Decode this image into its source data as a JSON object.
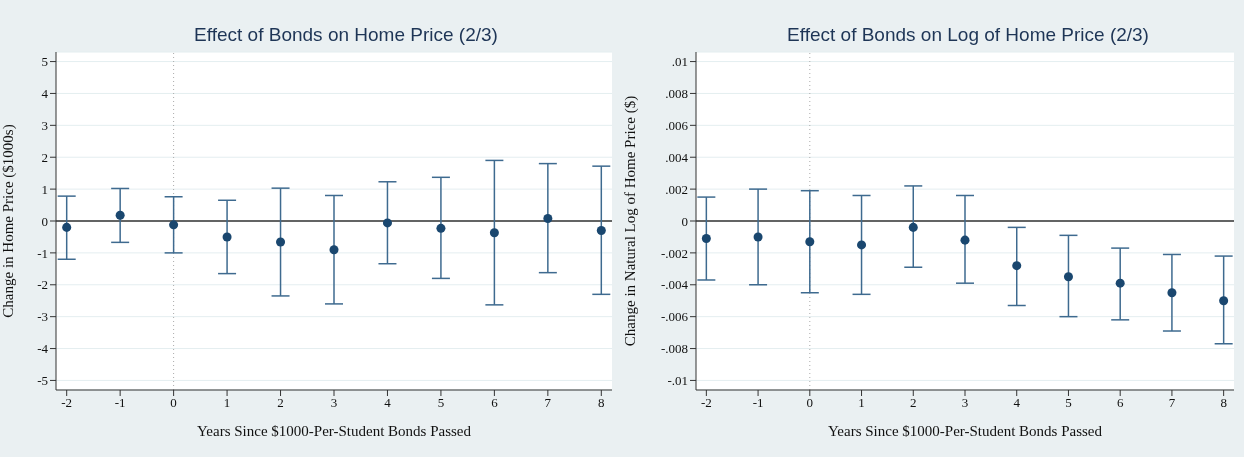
{
  "chart_data": [
    {
      "type": "scatter",
      "title": "Effect of Bonds on Home Price (2/3)",
      "xlabel": "Years Since $1000-Per-Student Bonds Passed",
      "ylabel": "Change in Home Price ($1000s)",
      "marker": "circle",
      "grid": "y",
      "xlim": [
        -2.2,
        8.2
      ],
      "xticks": [
        -2,
        -1,
        0,
        1,
        2,
        3,
        4,
        5,
        6,
        7,
        8
      ],
      "ylim": [
        -5.3,
        5.3
      ],
      "yticks": [
        -5,
        -4,
        -3,
        -2,
        -1,
        0,
        1,
        2,
        3,
        4,
        5
      ],
      "ref_lines": [
        {
          "axis": "y",
          "value": 0,
          "color": "#333333",
          "line_style": "solid"
        },
        {
          "axis": "x",
          "value": 0,
          "color": "#aaaaaa",
          "line_style": "dotted"
        }
      ],
      "series": [
        {
          "color": "#1a476f",
          "x": [
            -2,
            -1,
            0,
            1,
            2,
            3,
            4,
            5,
            6,
            7,
            8
          ],
          "values": [
            -0.2,
            0.18,
            -0.12,
            -0.5,
            -0.66,
            -0.9,
            -0.06,
            -0.23,
            -0.37,
            0.08,
            -0.3
          ],
          "errors": [
            [
              -1.2,
              0.78
            ],
            [
              -0.67,
              1.02
            ],
            [
              -1.0,
              0.76
            ],
            [
              -1.65,
              0.65
            ],
            [
              -2.35,
              1.03
            ],
            [
              -2.6,
              0.8
            ],
            [
              -1.34,
              1.23
            ],
            [
              -1.8,
              1.37
            ],
            [
              -2.63,
              1.9
            ],
            [
              -1.62,
              1.8
            ],
            [
              -2.3,
              1.72
            ]
          ]
        }
      ]
    },
    {
      "type": "scatter",
      "title": "Effect of Bonds on Log of Home Price (2/3)",
      "xlabel": "Years Since $1000-Per-Student Bonds Passed",
      "ylabel": "Change in Natural Log of Home Price ($)",
      "marker": "circle",
      "grid": "y",
      "xlim": [
        -2.2,
        8.2
      ],
      "xticks": [
        -2,
        -1,
        0,
        1,
        2,
        3,
        4,
        5,
        6,
        7,
        8
      ],
      "ylim": [
        -0.0106,
        0.0106
      ],
      "yticks": [
        {
          "value": -0.01,
          "label": "-.01"
        },
        {
          "value": -0.008,
          "label": "-.008"
        },
        {
          "value": -0.006,
          "label": "-.006"
        },
        {
          "value": -0.004,
          "label": "-.004"
        },
        {
          "value": -0.002,
          "label": "-.002"
        },
        0,
        {
          "value": 0.002,
          "label": ".002"
        },
        {
          "value": 0.004,
          "label": ".004"
        },
        {
          "value": 0.006,
          "label": ".006"
        },
        {
          "value": 0.008,
          "label": ".008"
        },
        {
          "value": 0.01,
          "label": ".01"
        }
      ],
      "ref_lines": [
        {
          "axis": "y",
          "value": 0,
          "color": "#333333",
          "line_style": "solid"
        },
        {
          "axis": "x",
          "value": 0,
          "color": "#aaaaaa",
          "line_style": "dotted"
        }
      ],
      "series": [
        {
          "color": "#1a476f",
          "x": [
            -2,
            -1,
            0,
            1,
            2,
            3,
            4,
            5,
            6,
            7,
            8
          ],
          "values": [
            -0.0011,
            -0.001,
            -0.0013,
            -0.0015,
            -0.0004,
            -0.0012,
            -0.0028,
            -0.0035,
            -0.0039,
            -0.0045,
            -0.005
          ],
          "errors": [
            [
              -0.0037,
              0.0015
            ],
            [
              -0.004,
              0.002
            ],
            [
              -0.0045,
              0.0019
            ],
            [
              -0.0046,
              0.0016
            ],
            [
              -0.0029,
              0.0022
            ],
            [
              -0.0039,
              0.0016
            ],
            [
              -0.0053,
              -0.0004
            ],
            [
              -0.006,
              -0.0009
            ],
            [
              -0.0062,
              -0.0017
            ],
            [
              -0.0069,
              -0.0021
            ],
            [
              -0.0077,
              -0.0022
            ]
          ]
        }
      ]
    }
  ]
}
